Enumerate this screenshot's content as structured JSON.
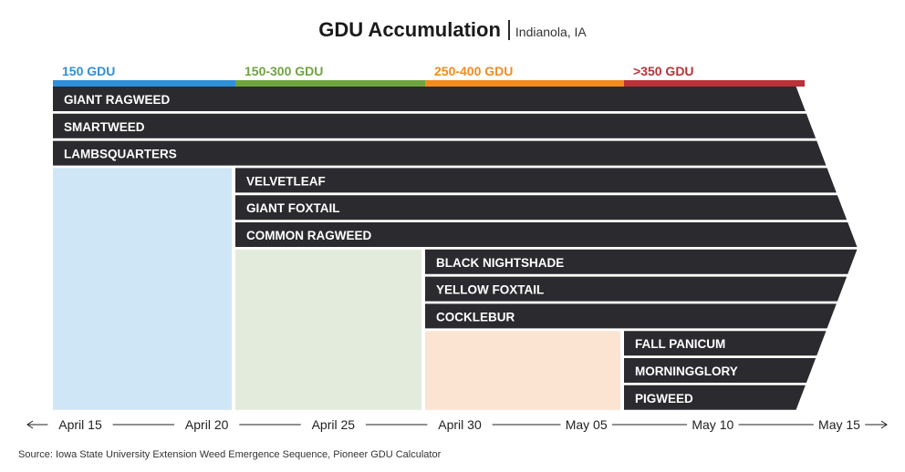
{
  "title": "GDU Accumulation",
  "subtitle": "Indianola, IA",
  "source": "Source: Iowa State University Extension Weed Emergence Sequence, Pioneer GDU Calculator",
  "colors": {
    "bar": "#2b2a2e",
    "bar_text": "#ffffff",
    "axis_text": "#222222"
  },
  "chart_data": {
    "type": "bar",
    "orientation": "horizontal",
    "title": "GDU Accumulation",
    "subtitle": "Indianola, IA",
    "x_axis": {
      "ticks": [
        "April 15",
        "April 20",
        "April 25",
        "April 30",
        "May 05",
        "May 10",
        "May 15"
      ],
      "arrows": "both-ends"
    },
    "gdu_zones": [
      {
        "label": "150 GDU",
        "start": 0,
        "end": 1,
        "top_color": "#2f8fd8",
        "text_color": "#2f8fd8",
        "fill_color": "#cfe6f6",
        "fill_from_row": 3
      },
      {
        "label": "150-300 GDU",
        "start": 1,
        "end": 2,
        "top_color": "#6fa43f",
        "text_color": "#6fa43f",
        "fill_color": "#e3ecdc",
        "fill_from_row": 6
      },
      {
        "label": "250-400 GDU",
        "start": 2,
        "end": 3,
        "top_color": "#f28c1e",
        "text_color": "#f28c1e",
        "fill_color": "#fbe4d2",
        "fill_from_row": 9
      },
      {
        "label": ">350 GDU",
        "start": 3,
        "end": 4,
        "top_color": "#b83237",
        "text_color": "#b83237",
        "fill_color": "#ffffff",
        "fill_from_row": 12
      }
    ],
    "weeds": [
      {
        "name": "GIANT RAGWEED",
        "emergence_zone": "150 GDU"
      },
      {
        "name": "SMARTWEED",
        "emergence_zone": "150 GDU"
      },
      {
        "name": "LAMBSQUARTERS",
        "emergence_zone": "150 GDU"
      },
      {
        "name": "VELVETLEAF",
        "emergence_zone": "150-300 GDU"
      },
      {
        "name": "GIANT FOXTAIL",
        "emergence_zone": "150-300 GDU"
      },
      {
        "name": "COMMON RAGWEED",
        "emergence_zone": "150-300 GDU"
      },
      {
        "name": "BLACK NIGHTSHADE",
        "emergence_zone": "250-400 GDU"
      },
      {
        "name": "YELLOW FOXTAIL",
        "emergence_zone": "250-400 GDU"
      },
      {
        "name": "COCKLEBUR",
        "emergence_zone": "250-400 GDU"
      },
      {
        "name": "FALL PANICUM",
        "emergence_zone": ">350 GDU"
      },
      {
        "name": "MORNINGGLORY",
        "emergence_zone": ">350 GDU"
      },
      {
        "name": "PIGWEED",
        "emergence_zone": ">350 GDU"
      }
    ],
    "grid": false,
    "legend": "none"
  }
}
